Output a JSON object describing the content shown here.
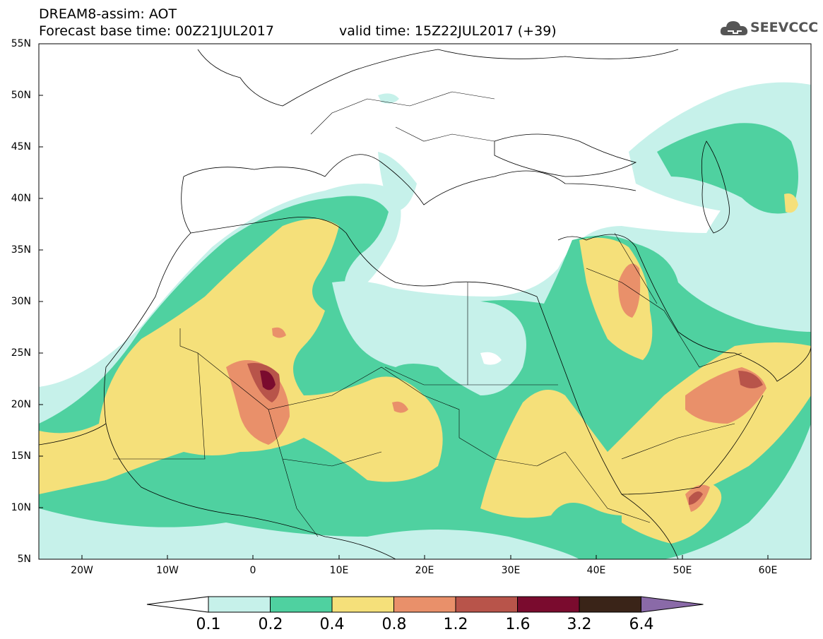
{
  "header": {
    "title": "DREAM8-assim: AOT",
    "base_time": "Forecast base time: 00Z21JUL2017",
    "valid_time": "valid time: 15Z22JUL2017 (+39)"
  },
  "logo": {
    "text": "SEEVCCC",
    "icon": "cloud-icon"
  },
  "map": {
    "projection": "lat-lon",
    "lon_range": [
      -25,
      65
    ],
    "lat_range": [
      5,
      55
    ],
    "lat_ticks": [
      "55N",
      "50N",
      "45N",
      "40N",
      "35N",
      "30N",
      "25N",
      "20N",
      "15N",
      "10N",
      "5N"
    ],
    "lon_ticks": [
      "20W",
      "10W",
      "0",
      "10E",
      "20E",
      "30E",
      "40E",
      "50E",
      "60E"
    ],
    "variable": "Aerosol Optical Thickness"
  },
  "colorbar": {
    "labels": [
      "0.1",
      "0.2",
      "0.4",
      "0.8",
      "1.2",
      "1.6",
      "3.2",
      "6.4"
    ],
    "colors": [
      "#ffffff",
      "#c6f1ea",
      "#4fd1a0",
      "#f5e07a",
      "#e9906a",
      "#b8544a",
      "#7a0b2e",
      "#3a2418",
      "#8a6aa8"
    ]
  }
}
